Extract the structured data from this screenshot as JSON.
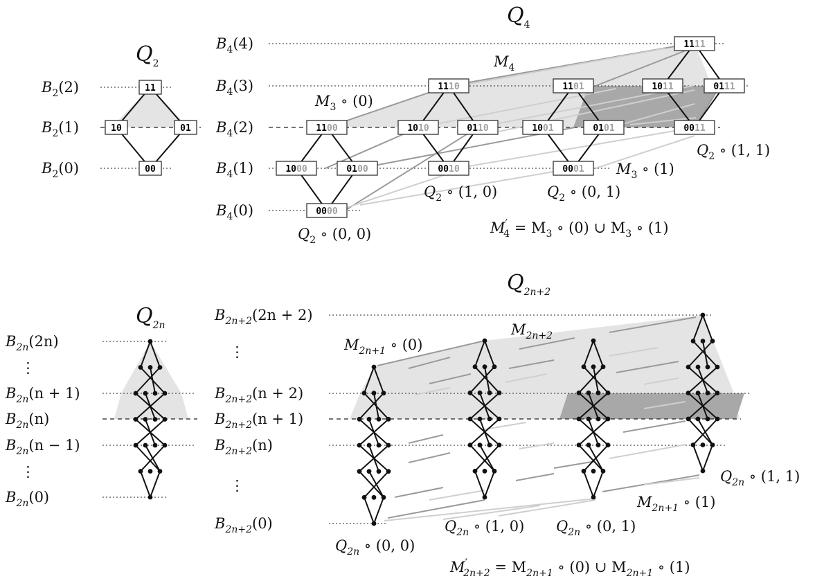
{
  "colors": {
    "text": "#111111",
    "region_light": "#e4e4e4",
    "region_dark": "#a8a8a8",
    "matching_dark": "#9a9a9a",
    "matching_light": "#cfcfcf",
    "bit_suffix": "#a0a0a0"
  },
  "top": {
    "q2": {
      "title": "Q",
      "title_sub": "2",
      "levels": [
        {
          "base": "B",
          "sub": "2",
          "arg": "(2)"
        },
        {
          "base": "B",
          "sub": "2",
          "arg": "(1)"
        },
        {
          "base": "B",
          "sub": "2",
          "arg": "(0)"
        }
      ],
      "nodes": [
        "11",
        "10",
        "01",
        "00"
      ]
    },
    "q4": {
      "title": "Q",
      "title_sub": "4",
      "levels": [
        {
          "base": "B",
          "sub": "4",
          "arg": "(4)"
        },
        {
          "base": "B",
          "sub": "4",
          "arg": "(3)"
        },
        {
          "base": "B",
          "sub": "4",
          "arg": "(2)"
        },
        {
          "base": "B",
          "sub": "4",
          "arg": "(1)"
        },
        {
          "base": "B",
          "sub": "4",
          "arg": "(0)"
        }
      ],
      "nodes": [
        {
          "prefix": "11",
          "suffix": "11"
        },
        {
          "prefix": "11",
          "suffix": "10"
        },
        {
          "prefix": "11",
          "suffix": "01"
        },
        {
          "prefix": "10",
          "suffix": "11"
        },
        {
          "prefix": "01",
          "suffix": "11"
        },
        {
          "prefix": "11",
          "suffix": "00"
        },
        {
          "prefix": "10",
          "suffix": "10"
        },
        {
          "prefix": "01",
          "suffix": "10"
        },
        {
          "prefix": "10",
          "suffix": "01"
        },
        {
          "prefix": "01",
          "suffix": "01"
        },
        {
          "prefix": "00",
          "suffix": "11"
        },
        {
          "prefix": "10",
          "suffix": "00"
        },
        {
          "prefix": "01",
          "suffix": "00"
        },
        {
          "prefix": "00",
          "suffix": "10"
        },
        {
          "prefix": "00",
          "suffix": "01"
        },
        {
          "prefix": "00",
          "suffix": "00"
        }
      ],
      "labels": {
        "m4": {
          "base": "M",
          "sub": "4"
        },
        "m3_0": {
          "base": "M",
          "sub": "3",
          "rest": " ∘ (0)"
        },
        "m3_1": {
          "base": "M",
          "sub": "3",
          "rest": " ∘ (1)"
        },
        "q2_00": {
          "base": "Q",
          "sub": "2",
          "rest": " ∘ (0, 0)"
        },
        "q2_10": {
          "base": "Q",
          "sub": "2",
          "rest": " ∘ (1, 0)"
        },
        "q2_01": {
          "base": "Q",
          "sub": "2",
          "rest": " ∘ (0, 1)"
        },
        "q2_11": {
          "base": "Q",
          "sub": "2",
          "rest": " ∘ (1, 1)"
        },
        "formula": {
          "lhs": "M",
          "lhs_sup": "′",
          "lhs_sub": "4",
          "rhs": " = M",
          "rhs_sub1": "3",
          "rhs_mid": " ∘ (0) ∪ M",
          "rhs_sub2": "3",
          "rhs_end": " ∘ (1)"
        }
      }
    }
  },
  "bottom": {
    "q2n": {
      "title": "Q",
      "title_sub": "2n",
      "levels": [
        {
          "base": "B",
          "sub": "2n",
          "arg": "(2n)"
        },
        {
          "base": "B",
          "sub": "2n",
          "arg": "(n + 1)"
        },
        {
          "base": "B",
          "sub": "2n",
          "arg": "(n)"
        },
        {
          "base": "B",
          "sub": "2n",
          "arg": "(n − 1)"
        },
        {
          "base": "B",
          "sub": "2n",
          "arg": "(0)"
        }
      ],
      "vdots": "⋮"
    },
    "q2n2": {
      "title": "Q",
      "title_sub": "2n+2",
      "levels": [
        {
          "base": "B",
          "sub": "2n+2",
          "arg": "(2n + 2)"
        },
        {
          "base": "B",
          "sub": "2n+2",
          "arg": "(n + 2)"
        },
        {
          "base": "B",
          "sub": "2n+2",
          "arg": "(n + 1)"
        },
        {
          "base": "B",
          "sub": "2n+2",
          "arg": "(n)"
        },
        {
          "base": "B",
          "sub": "2n+2",
          "arg": "(0)"
        }
      ],
      "vdots": "⋮",
      "labels": {
        "m2n2": {
          "base": "M",
          "sub": "2n+2"
        },
        "m_0": {
          "base": "M",
          "sub": "2n+1",
          "rest": " ∘ (0)"
        },
        "m_1": {
          "base": "M",
          "sub": "2n+1",
          "rest": " ∘ (1)"
        },
        "q_00": {
          "base": "Q",
          "sub": "2n",
          "rest": " ∘ (0, 0)"
        },
        "q_10": {
          "base": "Q",
          "sub": "2n",
          "rest": " ∘ (1, 0)"
        },
        "q_01": {
          "base": "Q",
          "sub": "2n",
          "rest": " ∘ (0, 1)"
        },
        "q_11": {
          "base": "Q",
          "sub": "2n",
          "rest": " ∘ (1, 1)"
        },
        "formula": {
          "lhs": "M",
          "lhs_sup": "′",
          "lhs_sub": "2n+2",
          "rhs": " = M",
          "rhs_sub1": "2n+1",
          "rhs_mid": " ∘ (0) ∪ M",
          "rhs_sub2": "2n+1",
          "rhs_end": " ∘ (1)"
        }
      }
    }
  }
}
